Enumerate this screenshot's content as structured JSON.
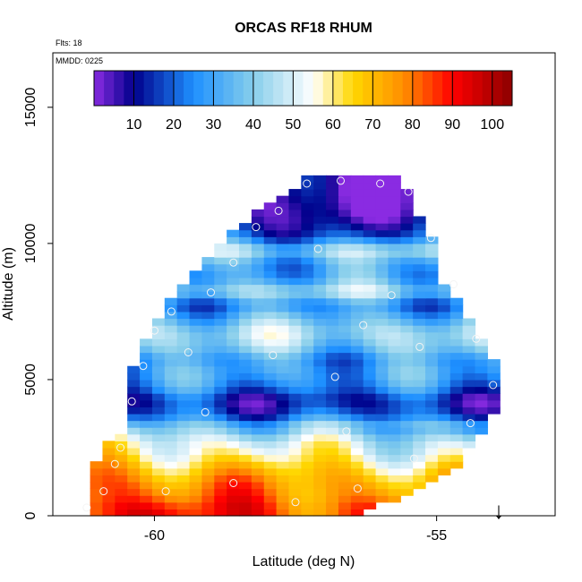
{
  "chart_data": {
    "type": "heatmap",
    "title": "ORCAS RF18 RHUM",
    "flights_label": "Flts: 18",
    "date_label": "MMDD: 0225",
    "xlabel": "Latitude (deg N)",
    "ylabel": "Altitude (m)",
    "xlim": [
      -61.8,
      -52.9
    ],
    "ylim": [
      0,
      17000
    ],
    "x_ticks": [
      -60,
      -55
    ],
    "x_tick_labels": [
      "-60",
      "-55"
    ],
    "y_ticks": [
      0,
      5000,
      10000,
      15000
    ],
    "y_tick_labels": [
      "0",
      "5000",
      "10000",
      "15000"
    ],
    "colorbar": {
      "vmin": 0,
      "vmax": 105,
      "ticks": [
        10,
        20,
        30,
        40,
        50,
        60,
        70,
        80,
        90,
        100
      ],
      "tick_labels": [
        "10",
        "20",
        "30",
        "40",
        "50",
        "60",
        "70",
        "80",
        "90",
        "100"
      ],
      "colors": [
        "#8a2be2",
        "#00008b",
        "#1e90ff",
        "#87ceeb",
        "#ffffff",
        "#ffd700",
        "#ff8c00",
        "#ff0000",
        "#8b0000"
      ],
      "color_positions": [
        0,
        10,
        25,
        40,
        55,
        65,
        78,
        90,
        105
      ]
    },
    "rh_profile": [
      {
        "alt": 250,
        "rh": 92
      },
      {
        "alt": 750,
        "rh": 85
      },
      {
        "alt": 1250,
        "rh": 80
      },
      {
        "alt": 1750,
        "rh": 72
      },
      {
        "alt": 2250,
        "rh": 62
      },
      {
        "alt": 2750,
        "rh": 55
      },
      {
        "alt": 3250,
        "rh": 40
      },
      {
        "alt": 3750,
        "rh": 18
      },
      {
        "alt": 4250,
        "rh": 12
      },
      {
        "alt": 4750,
        "rh": 25
      },
      {
        "alt": 5250,
        "rh": 30
      },
      {
        "alt": 5750,
        "rh": 28
      },
      {
        "alt": 6250,
        "rh": 40
      },
      {
        "alt": 6750,
        "rh": 45
      },
      {
        "alt": 7250,
        "rh": 35
      },
      {
        "alt": 7750,
        "rh": 25
      },
      {
        "alt": 8250,
        "rh": 45
      },
      {
        "alt": 8750,
        "rh": 30
      },
      {
        "alt": 9250,
        "rh": 30
      },
      {
        "alt": 9750,
        "rh": 45
      },
      {
        "alt": 10250,
        "rh": 20
      },
      {
        "alt": 10750,
        "rh": 10
      },
      {
        "alt": 11250,
        "rh": 5
      },
      {
        "alt": 11750,
        "rh": 3
      },
      {
        "alt": 12250,
        "rh": 3
      }
    ],
    "coverage": [
      {
        "alt": 250,
        "lat_min": -61.2,
        "lat_max": -56.2
      },
      {
        "alt": 1250,
        "lat_min": -61.1,
        "lat_max": -55.0
      },
      {
        "alt": 2250,
        "lat_min": -61.0,
        "lat_max": -54.4
      },
      {
        "alt": 3250,
        "lat_min": -60.5,
        "lat_max": -54.1
      },
      {
        "alt": 4250,
        "lat_min": -60.5,
        "lat_max": -53.9
      },
      {
        "alt": 5250,
        "lat_min": -60.4,
        "lat_max": -53.9
      },
      {
        "alt": 6250,
        "lat_min": -60.2,
        "lat_max": -54.1
      },
      {
        "alt": 7250,
        "lat_min": -59.9,
        "lat_max": -54.4
      },
      {
        "alt": 8250,
        "lat_min": -59.6,
        "lat_max": -54.8
      },
      {
        "alt": 9250,
        "lat_min": -59.2,
        "lat_max": -55.0
      },
      {
        "alt": 10250,
        "lat_min": -58.7,
        "lat_max": -55.1
      },
      {
        "alt": 11250,
        "lat_min": -58.2,
        "lat_max": -55.4
      },
      {
        "alt": 12250,
        "lat_min": -57.4,
        "lat_max": -55.6
      }
    ],
    "sample_points": [
      {
        "lat": -61.2,
        "alt": 300
      },
      {
        "lat": -60.9,
        "alt": 900
      },
      {
        "lat": -60.6,
        "alt": 2500
      },
      {
        "lat": -60.4,
        "alt": 4200
      },
      {
        "lat": -60.2,
        "alt": 5500
      },
      {
        "lat": -60.0,
        "alt": 6800
      },
      {
        "lat": -59.7,
        "alt": 7500
      },
      {
        "lat": -59.4,
        "alt": 6000
      },
      {
        "lat": -59.0,
        "alt": 8200
      },
      {
        "lat": -58.6,
        "alt": 9300
      },
      {
        "lat": -58.2,
        "alt": 10600
      },
      {
        "lat": -57.8,
        "alt": 11200
      },
      {
        "lat": -57.3,
        "alt": 12200
      },
      {
        "lat": -56.7,
        "alt": 12300
      },
      {
        "lat": -56.0,
        "alt": 12200
      },
      {
        "lat": -55.5,
        "alt": 11900
      },
      {
        "lat": -55.1,
        "alt": 10200
      },
      {
        "lat": -54.7,
        "alt": 8500
      },
      {
        "lat": -54.3,
        "alt": 6500
      },
      {
        "lat": -54.0,
        "alt": 4800
      },
      {
        "lat": -54.4,
        "alt": 3400
      },
      {
        "lat": -55.4,
        "alt": 2100
      },
      {
        "lat": -56.4,
        "alt": 1000
      },
      {
        "lat": -57.5,
        "alt": 500
      },
      {
        "lat": -58.6,
        "alt": 1200
      },
      {
        "lat": -59.8,
        "alt": 900
      },
      {
        "lat": -60.7,
        "alt": 1900
      },
      {
        "lat": -56.6,
        "alt": 3100
      },
      {
        "lat": -57.9,
        "alt": 5900
      },
      {
        "lat": -56.3,
        "alt": 7000
      },
      {
        "lat": -55.8,
        "alt": 8100
      },
      {
        "lat": -57.1,
        "alt": 9800
      },
      {
        "lat": -59.1,
        "alt": 3800
      },
      {
        "lat": -56.8,
        "alt": 5100
      },
      {
        "lat": -55.3,
        "alt": 6200
      }
    ],
    "marker": {
      "lat": -53.9,
      "symbol": "↓"
    }
  }
}
